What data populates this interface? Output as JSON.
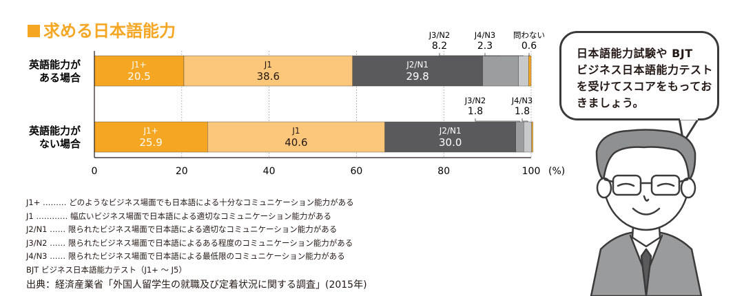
{
  "title": "求める日本語能力",
  "chart_data": {
    "type": "bar",
    "orientation": "horizontal-stacked-percent",
    "categories": [
      "英語能力が\nある場合",
      "英語能力が\nない場合"
    ],
    "series": [
      {
        "name": "J1+",
        "color": "#f5a623",
        "values": [
          20.5,
          25.9
        ]
      },
      {
        "name": "J1",
        "color": "#fcc77a",
        "values": [
          38.6,
          40.6
        ]
      },
      {
        "name": "J2/N1",
        "color": "#5a5a5c",
        "values": [
          29.8,
          30.0
        ]
      },
      {
        "name": "J3/N2",
        "color": "#9c9d9f",
        "values": [
          8.2,
          1.8
        ]
      },
      {
        "name": "J4/N3",
        "color": "#c8c9ca",
        "values": [
          2.3,
          1.8
        ]
      },
      {
        "name": "問わない",
        "color": "#f5a623",
        "values": [
          0.6,
          0.3
        ]
      }
    ],
    "callouts": [
      [
        {
          "name": "J3/N2",
          "value": "8.2"
        },
        {
          "name": "J4/N3",
          "value": "2.3"
        },
        {
          "name": "問わない",
          "value": "0.6"
        }
      ],
      [
        {
          "name": "J3/N2",
          "value": "1.8"
        },
        {
          "name": "J4/N3",
          "value": "1.8"
        }
      ]
    ],
    "xlim": [
      0,
      100
    ],
    "xticks": [
      0,
      20,
      40,
      60,
      80,
      100
    ],
    "xunit": "(%)",
    "grid": "vertical dotted"
  },
  "legend": [
    "J1+ ……… どのようなビジネス場面でも日本語による十分なコミュニケーション能力がある",
    "J1 ………… 幅広いビジネス場面で日本語による適切なコミュニケーション能力がある",
    "J2/N1 …… 限られたビジネス場面で日本語による適切なコミュニケーション能力がある",
    "J3/N2 …… 限られたビジネス場面で日本語によるある程度のコミュニケーション能力がある",
    "J4/N3 …… 限られたビジネス場面で日本語による最低限のコミュニケーション能力がある",
    "BJT ビジネス日本語能力テスト（J1+ ～ J5）"
  ],
  "source": "出典：経済産業省「外国人留学生の就職及び定着状況に関する調査」(2015年)",
  "bubble": {
    "lines": [
      "日本語能力試験や BJT",
      "ビジネス日本語能力テスト",
      "を受けてスコアをもってお",
      "きましょう。"
    ]
  },
  "colors": {
    "accent": "#f5a623",
    "text": "#231815"
  }
}
